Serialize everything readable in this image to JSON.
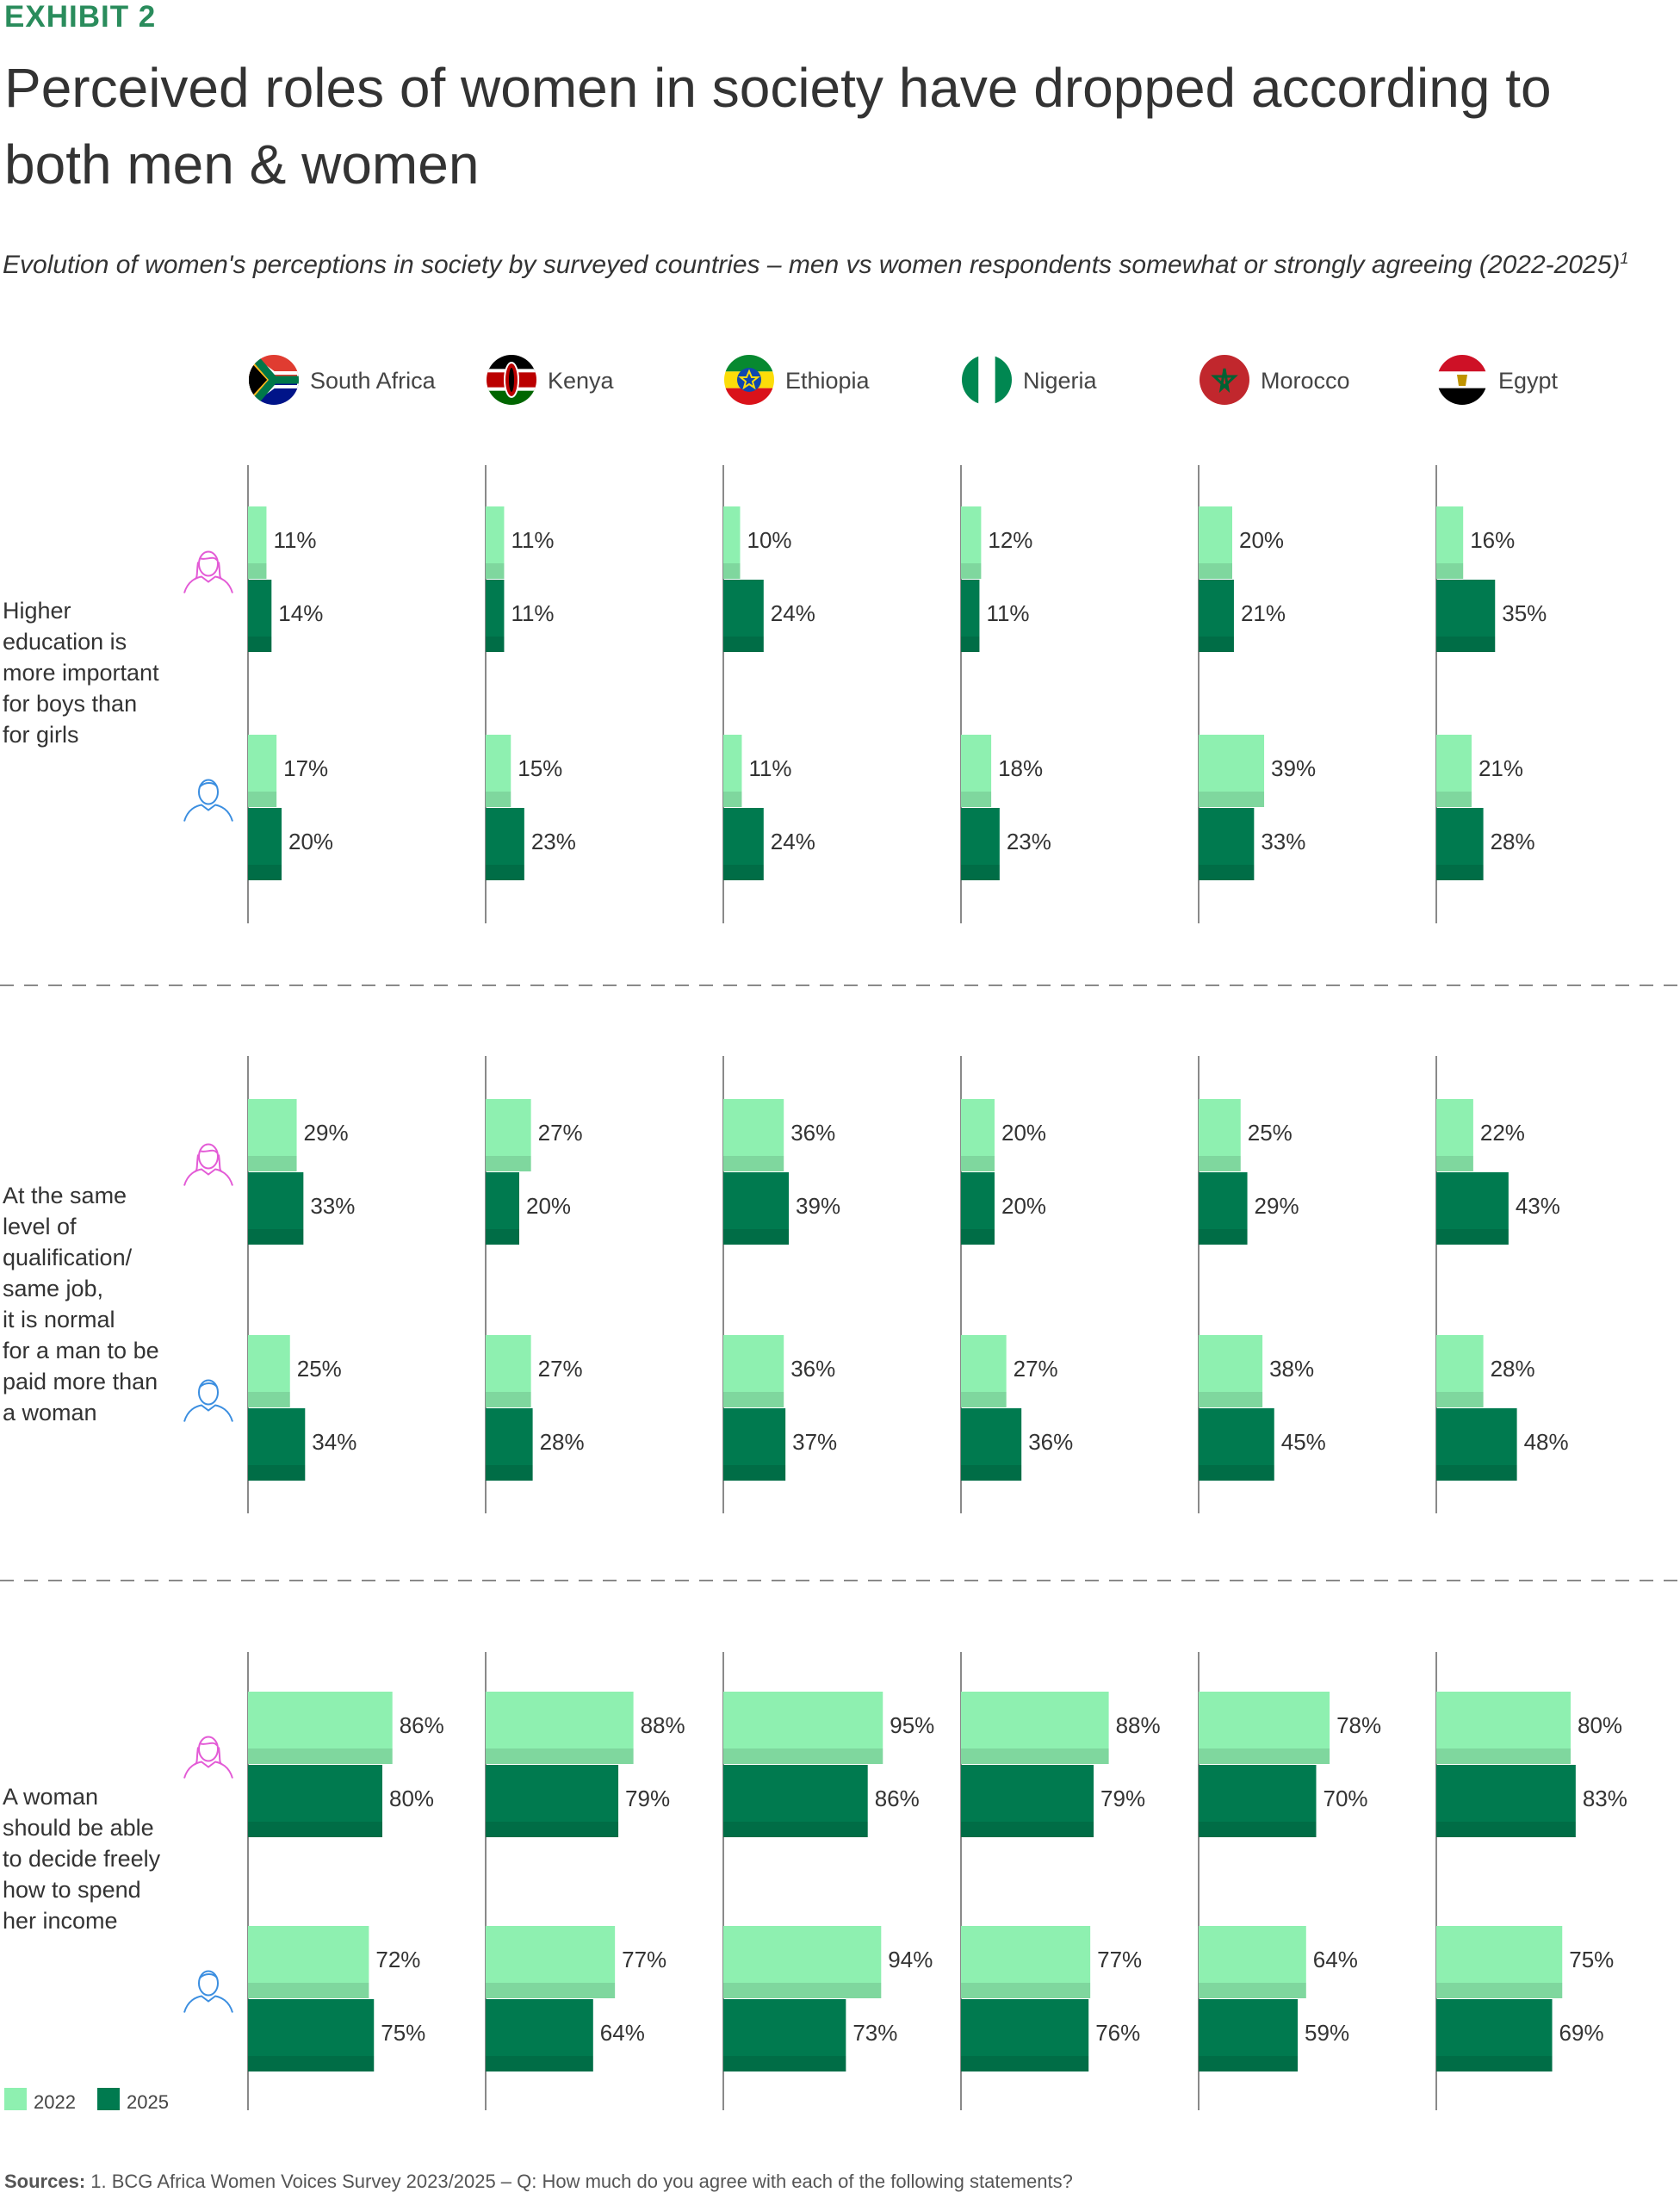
{
  "header": {
    "exhibit": "EXHIBIT 2",
    "title": "Perceived roles of women in society have dropped according to both men & women",
    "subtitle": "Evolution of women's perceptions in society by surveyed countries – men vs women respondents somewhat or strongly agreeing  (2022-2025)",
    "subtitle_note": "1"
  },
  "legend": [
    {
      "label": "2022",
      "color": "#8ef0b0"
    },
    {
      "label": "2025",
      "color": "#007a4f"
    }
  ],
  "respondent_icons": [
    "woman-icon",
    "man-icon"
  ],
  "colors": {
    "c2022": "#8ef0b0",
    "c2025": "#007a4f",
    "woman": "#e35bd6",
    "man": "#3b8ee0",
    "exhibit": "#2a8c5c"
  },
  "sources": {
    "label": "Sources:",
    "text": "1. BCG Africa Women Voices Survey 2023/2025 – Q: How much do you agree with each of the following statements?"
  },
  "chart_data": {
    "type": "bar",
    "orientation": "horizontal",
    "countries": [
      {
        "name": "South Africa",
        "flag": "south-africa-flag-icon"
      },
      {
        "name": "Kenya",
        "flag": "kenya-flag-icon"
      },
      {
        "name": "Ethiopia",
        "flag": "ethiopia-flag-icon"
      },
      {
        "name": "Nigeria",
        "flag": "nigeria-flag-icon"
      },
      {
        "name": "Morocco",
        "flag": "morocco-flag-icon"
      },
      {
        "name": "Egypt",
        "flag": "egypt-flag-icon"
      }
    ],
    "years": [
      "2022",
      "2025"
    ],
    "unit": "%",
    "statements": [
      {
        "label": "Higher education is more important for boys than for girls",
        "label_lines": [
          "Higher",
          "education is",
          "more important",
          "for boys than",
          "for girls"
        ],
        "women": {
          "2022": [
            11,
            11,
            10,
            12,
            20,
            16
          ],
          "2025": [
            14,
            11,
            24,
            11,
            21,
            35
          ]
        },
        "men": {
          "2022": [
            17,
            15,
            11,
            18,
            39,
            21
          ],
          "2025": [
            20,
            23,
            24,
            23,
            33,
            28
          ]
        }
      },
      {
        "label": "At the same level of qualification/ same job, it is normal for a man to be paid more than a woman",
        "label_lines": [
          "At the same",
          "level of",
          "qualification/",
          "same job,",
          "it is normal",
          "for a man to be",
          "paid more than",
          "a woman"
        ],
        "women": {
          "2022": [
            29,
            27,
            36,
            20,
            25,
            22
          ],
          "2025": [
            33,
            20,
            39,
            20,
            29,
            43
          ]
        },
        "men": {
          "2022": [
            25,
            27,
            36,
            27,
            38,
            28
          ],
          "2025": [
            34,
            28,
            37,
            36,
            45,
            48
          ]
        }
      },
      {
        "label": "A woman should be able to decide freely how to spend her income",
        "label_lines": [
          "A woman",
          "should be able",
          "to decide freely",
          "how to spend",
          "her income"
        ],
        "women": {
          "2022": [
            86,
            88,
            95,
            88,
            78,
            80
          ],
          "2025": [
            80,
            79,
            86,
            79,
            70,
            83
          ]
        },
        "men": {
          "2022": [
            72,
            77,
            94,
            77,
            64,
            75
          ],
          "2025": [
            75,
            64,
            73,
            76,
            59,
            69
          ]
        }
      }
    ]
  }
}
